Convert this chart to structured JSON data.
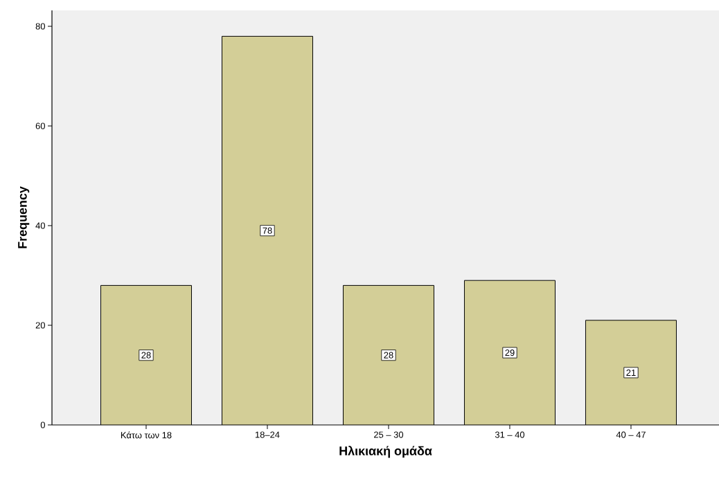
{
  "chart_data": {
    "type": "bar",
    "xlabel": "Ηλικιακή ομάδα",
    "ylabel": "Frequency",
    "categories": [
      "Κάτω των 18",
      "18–24",
      "25 – 30",
      "31 – 40",
      "40 – 47"
    ],
    "values": [
      28,
      78,
      28,
      29,
      21
    ],
    "color": "#d3ce97",
    "ylim": [
      0,
      83.2
    ],
    "yticks": [
      0,
      20,
      40,
      60,
      80
    ],
    "grid": false,
    "data_labels": true
  }
}
